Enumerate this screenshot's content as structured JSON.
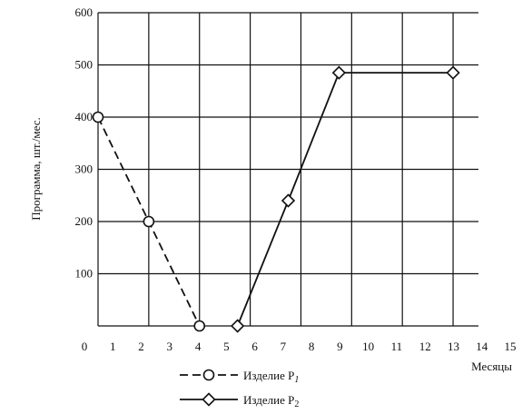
{
  "chart_data": {
    "type": "line",
    "title": "",
    "xlabel": "Месяцы",
    "ylabel": "Программа, шт./мес.",
    "xlim": [
      0,
      15
    ],
    "ylim": [
      0,
      600
    ],
    "x_ticks": [
      "0",
      "1",
      "2",
      "3",
      "4",
      "5",
      "6",
      "7",
      "8",
      "9",
      "10",
      "11",
      "12",
      "13",
      "14",
      "15"
    ],
    "y_ticks": [
      "100",
      "200",
      "300",
      "400",
      "500",
      "600"
    ],
    "grid": true,
    "legend": "bottom",
    "series": [
      {
        "name": "Изделие P",
        "name_sub": "1",
        "line_style": "dashed",
        "marker": "circle",
        "x": [
          0,
          2,
          4
        ],
        "y": [
          400,
          200,
          0
        ]
      },
      {
        "name": "Изделие P",
        "name_sub": "2",
        "line_style": "solid",
        "marker": "diamond",
        "x": [
          5.5,
          7.5,
          9.5,
          14
        ],
        "y": [
          0,
          240,
          485,
          485
        ]
      }
    ]
  }
}
